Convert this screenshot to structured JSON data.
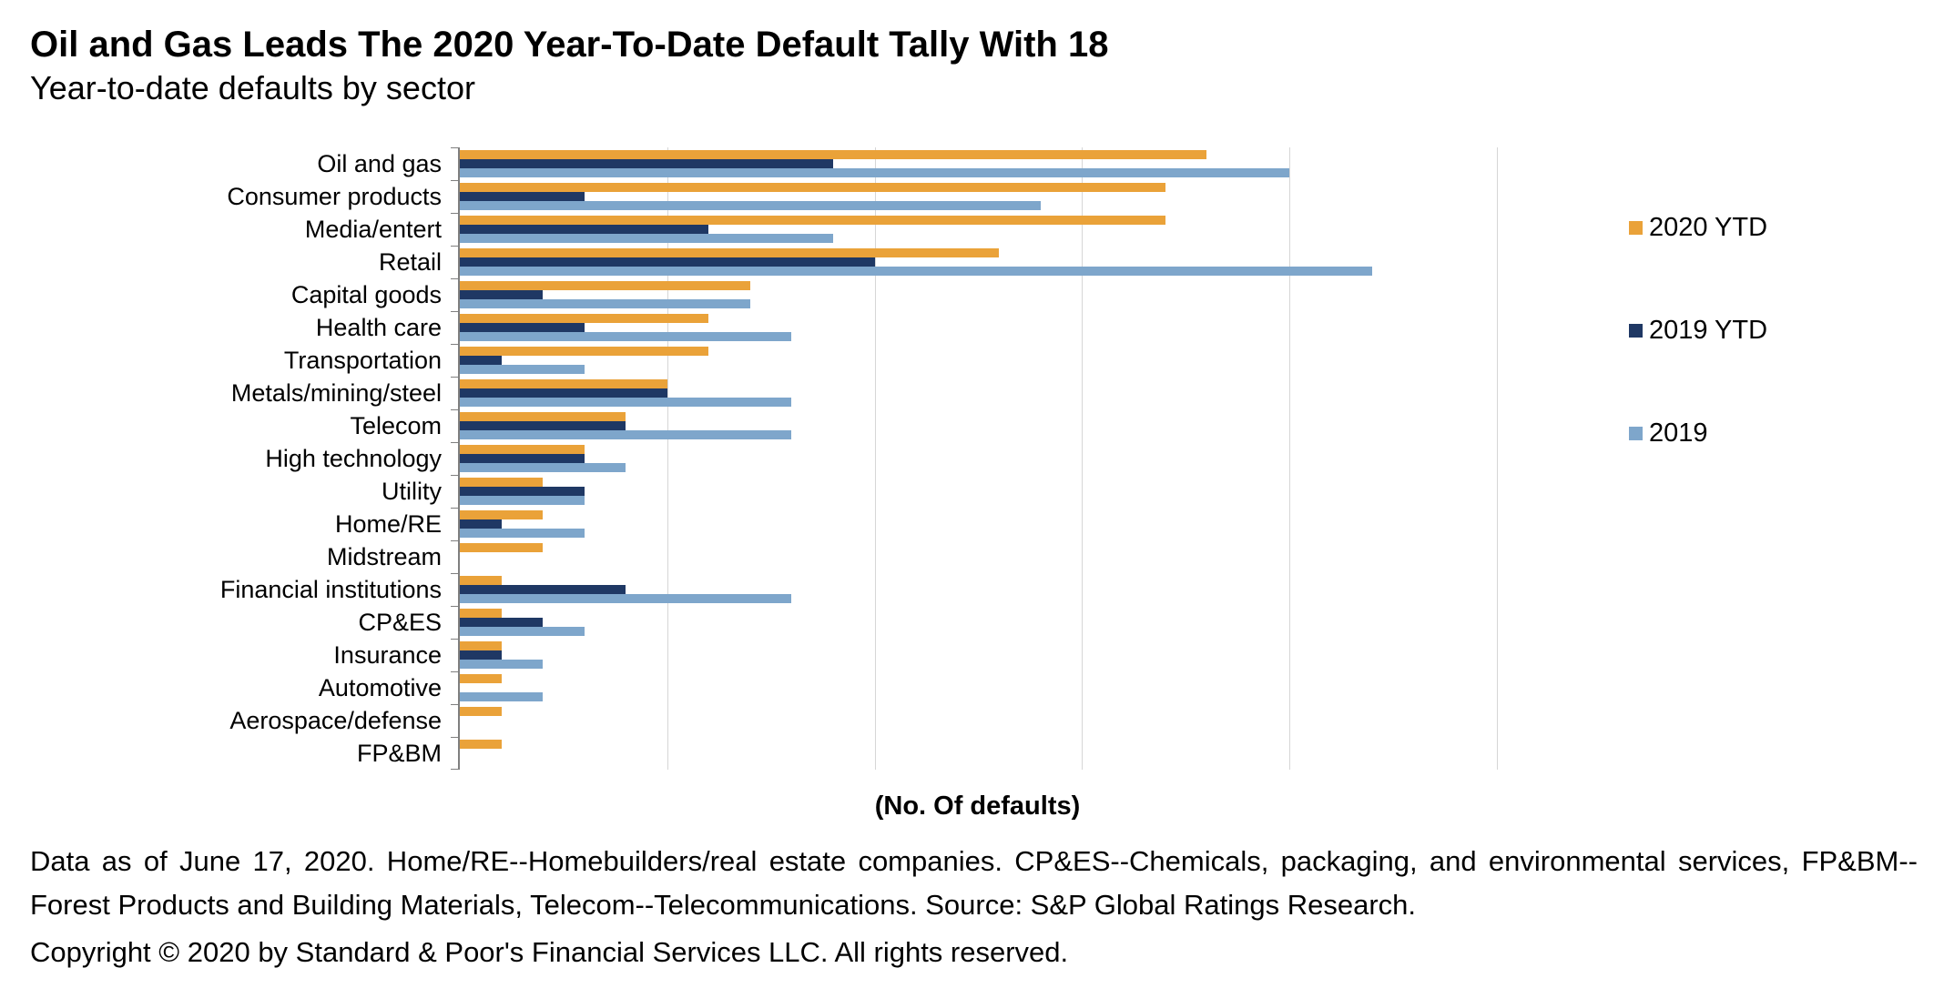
{
  "title": "Oil and Gas Leads The 2020 Year-To-Date Default Tally With 18",
  "subtitle": "Year-to-date defaults by sector",
  "chart_data": {
    "type": "bar",
    "orientation": "horizontal",
    "title": "Oil and Gas Leads The 2020 Year-To-Date Default Tally With 18",
    "subtitle": "Year-to-date defaults by sector",
    "xlabel": "(No. Of defaults)",
    "xlim": [
      0,
      25
    ],
    "gridlines": [
      0,
      5,
      10,
      15,
      20,
      25
    ],
    "grid": true,
    "legend_position": "right",
    "categories": [
      "Oil and gas",
      "Consumer products",
      "Media/entert",
      "Retail",
      "Capital goods",
      "Health care",
      "Transportation",
      "Metals/mining/steel",
      "Telecom",
      "High technology",
      "Utility",
      "Home/RE",
      "Midstream",
      "Financial institutions",
      "CP&ES",
      "Insurance",
      "Automotive",
      "Aerospace/defense",
      "FP&BM"
    ],
    "series": [
      {
        "name": "2020 YTD",
        "color": "#EAA239",
        "values": [
          18,
          17,
          17,
          13,
          7,
          6,
          6,
          5,
          4,
          3,
          2,
          2,
          2,
          1,
          1,
          1,
          1,
          1,
          1
        ]
      },
      {
        "name": "2019 YTD",
        "color": "#1F3864",
        "values": [
          9,
          3,
          6,
          10,
          2,
          3,
          1,
          5,
          4,
          3,
          3,
          1,
          0,
          4,
          2,
          1,
          0,
          0,
          0
        ]
      },
      {
        "name": "2019",
        "color": "#7EA6CB",
        "values": [
          20,
          14,
          9,
          22,
          7,
          8,
          3,
          8,
          8,
          4,
          3,
          3,
          0,
          8,
          3,
          2,
          2,
          0,
          0
        ]
      }
    ]
  },
  "footnotes": {
    "line1": "Data as of June 17, 2020. Home/RE--Homebuilders/real estate companies. CP&ES--Chemicals, packaging, and environmental services, FP&BM--Forest Products and Building Materials, Telecom--Telecommunications. Source: S&P Global Ratings Research.",
    "line2": "Copyright © 2020 by Standard & Poor's Financial Services LLC. All rights reserved."
  }
}
